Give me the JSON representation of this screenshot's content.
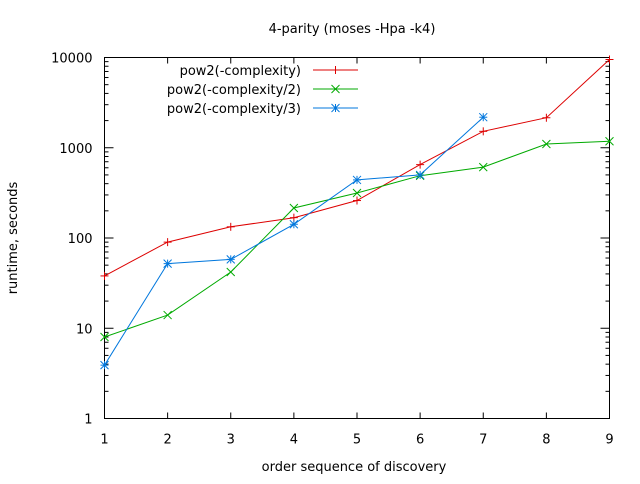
{
  "chart_data": {
    "type": "line",
    "title": "4-parity (moses -Hpa -k4)",
    "xlabel": "order sequence of discovery",
    "ylabel": "runtime, seconds",
    "xlim": [
      1,
      9
    ],
    "ylim": [
      1,
      10000
    ],
    "yscale": "log",
    "grid": false,
    "legend_position": "top-left",
    "x_ticks": [
      "1",
      "2",
      "3",
      "4",
      "5",
      "6",
      "7",
      "8",
      "9"
    ],
    "y_ticks": [
      "1",
      "10",
      "100",
      "1000",
      "10000"
    ],
    "series": [
      {
        "name": "pow2(-complexity)",
        "color": "#dd0000",
        "marker": "plus",
        "x": [
          1,
          2,
          3,
          4,
          5,
          6,
          7,
          8,
          9
        ],
        "y": [
          38,
          90,
          133,
          168,
          260,
          650,
          1520,
          2150,
          9500
        ]
      },
      {
        "name": "pow2(-complexity/2)",
        "color": "#00aa00",
        "marker": "cross",
        "x": [
          1,
          2,
          3,
          4,
          5,
          6,
          7,
          8,
          9
        ],
        "y": [
          8,
          14,
          42,
          215,
          315,
          490,
          610,
          1100,
          1180
        ]
      },
      {
        "name": "pow2(-complexity/3)",
        "color": "#0077dd",
        "marker": "star",
        "x": [
          1,
          2,
          3,
          4,
          5,
          6,
          7
        ],
        "y": [
          3.9,
          52,
          58,
          142,
          440,
          500,
          2180
        ]
      }
    ]
  }
}
